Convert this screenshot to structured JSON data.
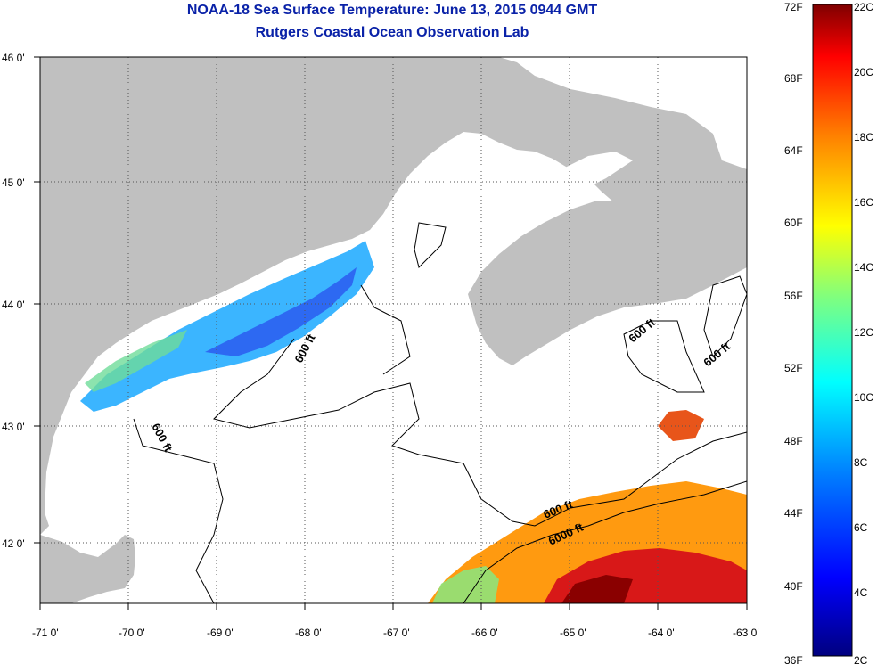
{
  "header": {
    "title": "NOAA-18 Sea Surface Temperature:  June 13, 2015 0944 GMT",
    "subtitle": "Rutgers Coastal Ocean Observation Lab"
  },
  "map": {
    "lon_range": [
      -71,
      -63
    ],
    "lat_range": [
      41.5,
      46
    ],
    "x_ticks": [
      "-71 0'",
      "-70 0'",
      "-69 0'",
      "-68 0'",
      "-67 0'",
      "-66 0'",
      "-65 0'",
      "-64 0'",
      "-63 0'"
    ],
    "y_ticks": [
      "46 0'",
      "45 0'",
      "44 0'",
      "43 0'",
      "42 0'"
    ],
    "grid": "dotted",
    "land_color": "#c0c0c0",
    "cloud_color": "#ffffff",
    "contour_labels": [
      "600 ft",
      "600 ft",
      "600 ft",
      "600 ft",
      "600 ft",
      "6000 ft"
    ]
  },
  "colorbar": {
    "fahrenheit_labels": [
      "72F",
      "68F",
      "64F",
      "60F",
      "56F",
      "52F",
      "48F",
      "44F",
      "40F",
      "36F"
    ],
    "celsius_labels": [
      "22C",
      "20C",
      "18C",
      "16C",
      "14C",
      "12C",
      "10C",
      "8C",
      "6C",
      "4C",
      "2C"
    ],
    "colors": [
      "#00007f",
      "#0000ff",
      "#007fff",
      "#00ffff",
      "#7fff7f",
      "#ffff00",
      "#ff7f00",
      "#ff0000",
      "#7f0000"
    ]
  }
}
